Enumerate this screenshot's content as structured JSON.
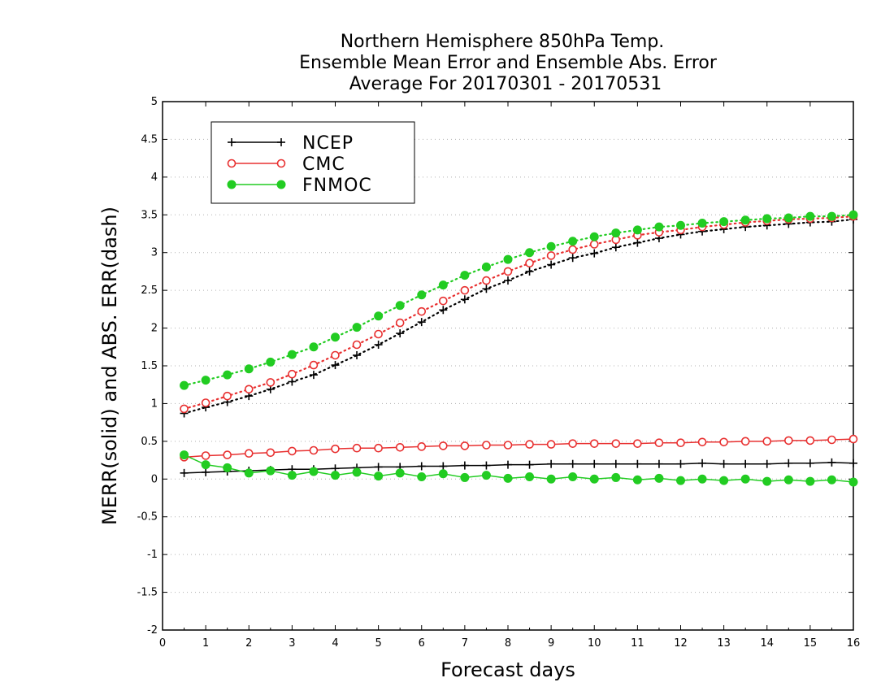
{
  "chart_data": {
    "type": "line",
    "title": [
      "Northern Hemisphere 850hPa Temp.",
      "Ensemble Mean Error and Ensemble Abs. Error",
      "Average For 20170301 - 20170531"
    ],
    "xlabel": "Forecast days",
    "ylabel": "MERR(solid) and ABS. ERR(dash)",
    "xlim": [
      0,
      16
    ],
    "ylim": [
      -2,
      5
    ],
    "xticks": [
      "0",
      "1",
      "2",
      "3",
      "4",
      "5",
      "6",
      "7",
      "8",
      "9",
      "10",
      "11",
      "12",
      "13",
      "14",
      "15",
      "16"
    ],
    "yticks": [
      "-2",
      "-1.5",
      "-1",
      "-0.5",
      "0",
      "0.5",
      "1",
      "1.5",
      "2",
      "2.5",
      "3",
      "3.5",
      "4",
      "4.5",
      "5"
    ],
    "grid": "dotted horizontal",
    "legend_position": "top-left",
    "x": [
      0.5,
      1,
      1.5,
      2,
      2.5,
      3,
      3.5,
      4,
      4.5,
      5,
      5.5,
      6,
      6.5,
      7,
      7.5,
      8,
      8.5,
      9,
      9.5,
      10,
      10.5,
      11,
      11.5,
      12,
      12.5,
      13,
      13.5,
      14,
      14.5,
      15,
      15.5,
      16
    ],
    "series": [
      {
        "name": "NCEP",
        "color": "#000000",
        "marker": "plus",
        "merr": [
          0.08,
          0.09,
          0.1,
          0.11,
          0.12,
          0.13,
          0.13,
          0.14,
          0.15,
          0.16,
          0.16,
          0.17,
          0.17,
          0.18,
          0.18,
          0.19,
          0.19,
          0.2,
          0.2,
          0.2,
          0.2,
          0.2,
          0.2,
          0.2,
          0.21,
          0.2,
          0.2,
          0.2,
          0.21,
          0.21,
          0.22,
          0.21
        ],
        "abs_err": [
          0.87,
          0.95,
          1.02,
          1.1,
          1.19,
          1.29,
          1.38,
          1.51,
          1.64,
          1.78,
          1.93,
          2.08,
          2.24,
          2.38,
          2.52,
          2.63,
          2.75,
          2.84,
          2.93,
          2.99,
          3.07,
          3.13,
          3.19,
          3.24,
          3.28,
          3.31,
          3.34,
          3.36,
          3.38,
          3.4,
          3.41,
          3.44
        ]
      },
      {
        "name": "CMC",
        "color": "#e83030",
        "marker": "open-circle",
        "merr": [
          0.29,
          0.31,
          0.32,
          0.34,
          0.35,
          0.37,
          0.38,
          0.4,
          0.41,
          0.41,
          0.42,
          0.43,
          0.44,
          0.44,
          0.45,
          0.45,
          0.46,
          0.46,
          0.47,
          0.47,
          0.47,
          0.47,
          0.48,
          0.48,
          0.49,
          0.49,
          0.5,
          0.5,
          0.51,
          0.51,
          0.52,
          0.53
        ],
        "abs_err": [
          0.93,
          1.01,
          1.1,
          1.19,
          1.28,
          1.39,
          1.51,
          1.64,
          1.78,
          1.92,
          2.07,
          2.22,
          2.36,
          2.5,
          2.63,
          2.75,
          2.86,
          2.96,
          3.04,
          3.11,
          3.17,
          3.23,
          3.27,
          3.3,
          3.34,
          3.37,
          3.4,
          3.42,
          3.44,
          3.45,
          3.46,
          3.48
        ]
      },
      {
        "name": "FNMOC",
        "color": "#22cc22",
        "marker": "filled-circle",
        "merr": [
          0.32,
          0.19,
          0.15,
          0.08,
          0.11,
          0.05,
          0.1,
          0.05,
          0.09,
          0.04,
          0.08,
          0.03,
          0.07,
          0.02,
          0.05,
          0.01,
          0.03,
          0.0,
          0.03,
          0.0,
          0.02,
          -0.01,
          0.01,
          -0.02,
          0.0,
          -0.02,
          0.0,
          -0.03,
          -0.01,
          -0.03,
          -0.01,
          -0.04
        ],
        "abs_err": [
          1.24,
          1.31,
          1.38,
          1.46,
          1.55,
          1.65,
          1.75,
          1.88,
          2.01,
          2.16,
          2.3,
          2.44,
          2.57,
          2.7,
          2.81,
          2.91,
          3.0,
          3.08,
          3.15,
          3.21,
          3.26,
          3.3,
          3.34,
          3.36,
          3.39,
          3.41,
          3.43,
          3.45,
          3.46,
          3.48,
          3.48,
          3.5
        ]
      }
    ]
  }
}
